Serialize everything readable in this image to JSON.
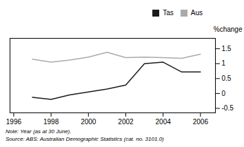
{
  "chart_data": {
    "type": "line",
    "x": [
      1997,
      1998,
      1999,
      2000,
      2001,
      2002,
      2003,
      2004,
      2005,
      2006
    ],
    "series": [
      {
        "name": "Tas",
        "color": "#1a1a1a",
        "values": [
          -0.13,
          -0.2,
          -0.05,
          0.05,
          0.15,
          0.28,
          1.0,
          1.05,
          0.72,
          0.72
        ]
      },
      {
        "name": "Aus",
        "color": "#aaaaaa",
        "values": [
          1.15,
          1.05,
          1.12,
          1.22,
          1.38,
          1.2,
          1.22,
          1.2,
          1.18,
          1.32
        ]
      }
    ],
    "xlim": [
      1995.8,
      2006.8
    ],
    "xticks": [
      1996,
      1998,
      2000,
      2002,
      2004,
      2006
    ],
    "ylim": [
      -0.65,
      1.85
    ],
    "yticks": [
      -0.5,
      0,
      0.5,
      1,
      1.5
    ],
    "ylabel": "%change",
    "annotations": [
      "Note: Year (as at 30 June).",
      "Source: ABS: Australian Demographic Statistics (cat. no. 3101.0)"
    ],
    "legend": "upper right",
    "grid": false
  }
}
